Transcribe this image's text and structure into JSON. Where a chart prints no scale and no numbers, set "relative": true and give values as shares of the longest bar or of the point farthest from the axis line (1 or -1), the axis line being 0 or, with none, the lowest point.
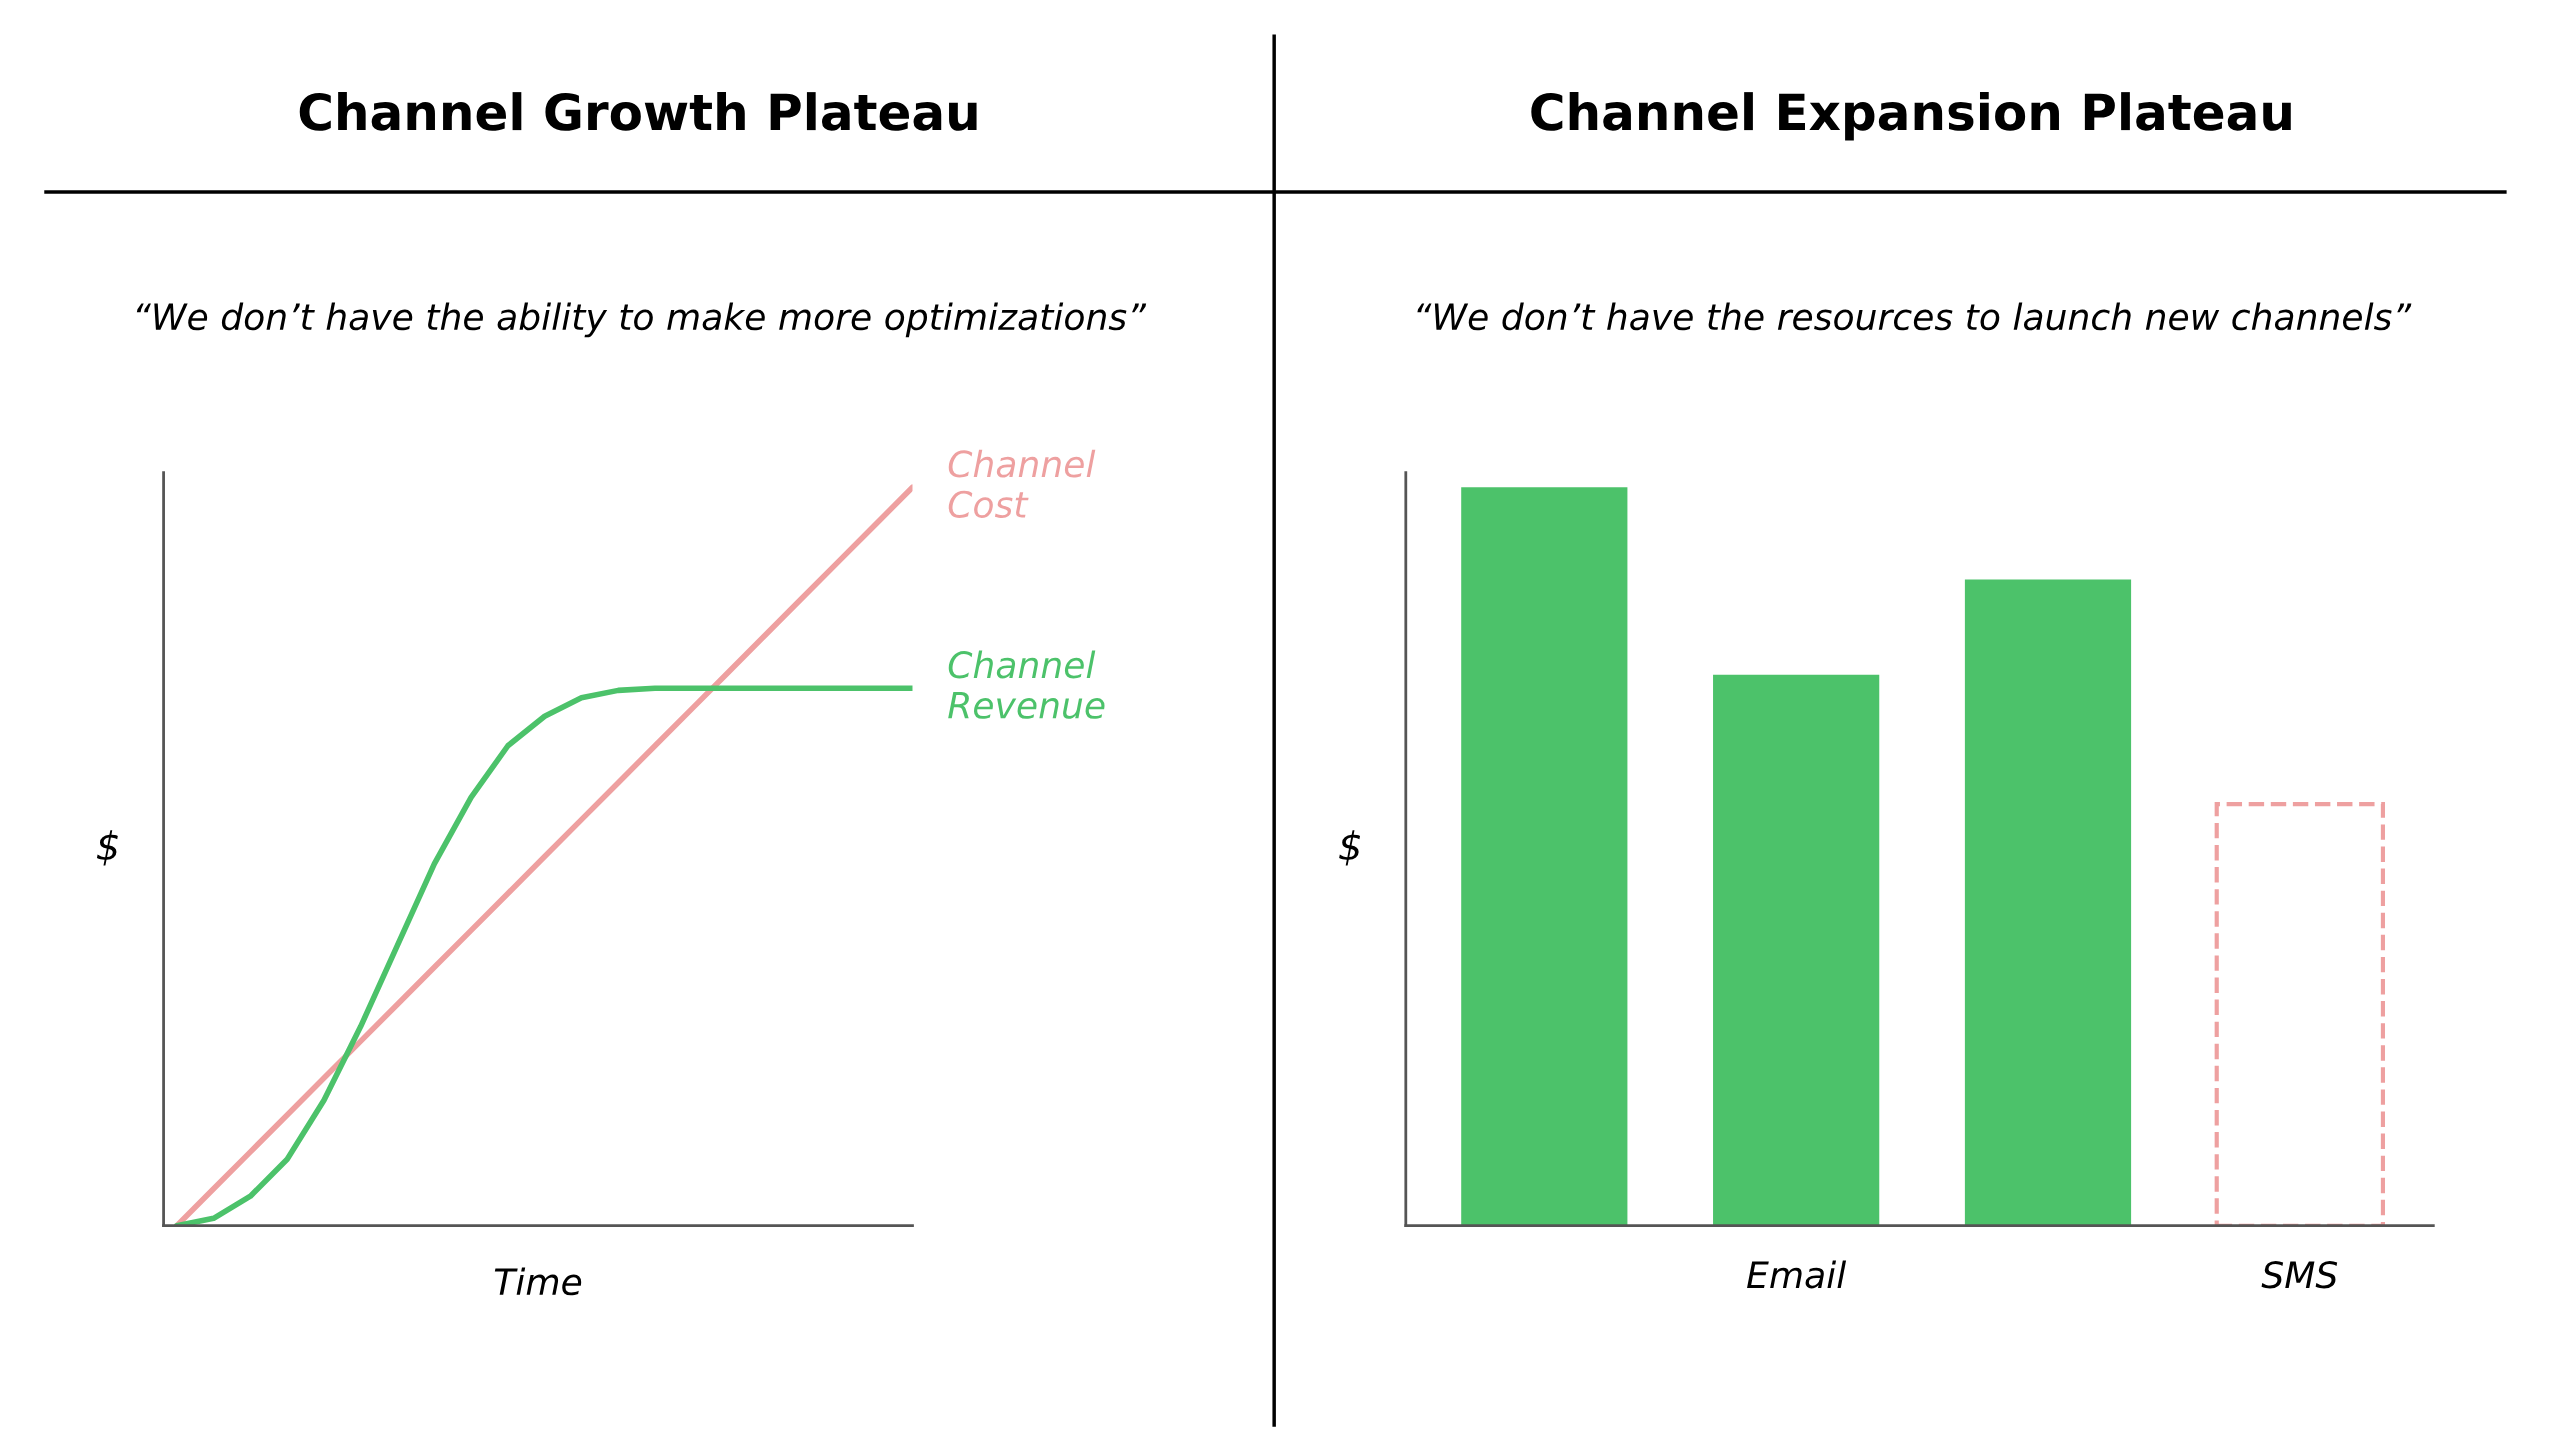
{
  "chart_data": [
    {
      "type": "line",
      "title": "Channel Growth Plateau",
      "subtitle": "“We don’t have the ability to make more optimizations”",
      "xlabel": "Time",
      "ylabel": "$",
      "relative": true,
      "categories": [
        null,
        null,
        null,
        null,
        null,
        null,
        null,
        null,
        null,
        null,
        null,
        null,
        null,
        null,
        null,
        null,
        null,
        null,
        null,
        null,
        null
      ],
      "series": [
        {
          "name": "Channel\nCost",
          "color": "#eea0a0",
          "values": [
            0,
            0.05,
            0.1,
            0.15,
            0.2,
            0.25,
            0.3,
            0.35,
            0.4,
            0.45,
            0.5,
            0.55,
            0.6,
            0.65,
            0.7,
            0.75,
            0.8,
            0.85,
            0.9,
            0.95,
            1
          ]
        },
        {
          "name": "Channel\nRevenue",
          "color": "#4cc26a",
          "values": [
            0,
            0.01,
            0.04,
            0.09,
            0.17,
            0.27,
            0.38,
            0.49,
            0.58,
            0.65,
            0.69,
            0.715,
            0.725,
            0.728,
            0.728,
            0.728,
            0.728,
            0.728,
            0.728,
            0.728,
            0.728
          ]
        }
      ],
      "legend": false,
      "grid": false
    },
    {
      "type": "bar",
      "title": "Channel Expansion Plateau",
      "subtitle": "“We don’t have the resources to launch new channels”",
      "ylabel": "$",
      "relative": true,
      "categories": [
        null,
        "Email",
        null,
        "SMS"
      ],
      "series": [
        {
          "color": "#4cc26a",
          "values": [
            1,
            0.746,
            0.875,
            null
          ]
        },
        {
          "color": "#eea0a0",
          "line_style": "dashed",
          "values": [
            null,
            null,
            null,
            0.571
          ]
        }
      ],
      "legend": false,
      "grid": false
    }
  ]
}
